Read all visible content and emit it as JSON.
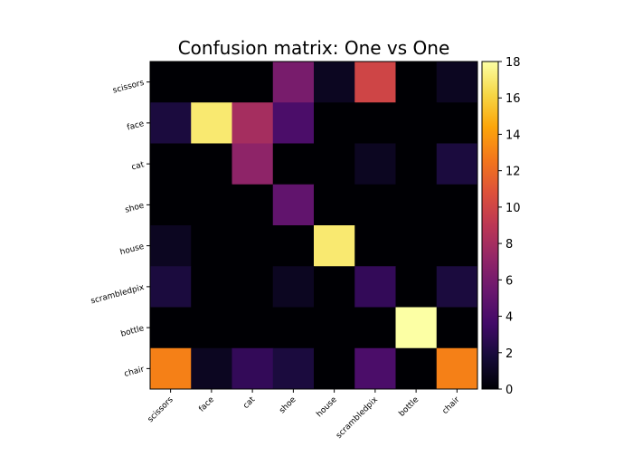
{
  "chart_data": {
    "type": "heatmap",
    "title": "Confusion matrix: One vs One",
    "x_categories": [
      "scissors",
      "face",
      "cat",
      "shoe",
      "house",
      "scrambledpix",
      "bottle",
      "chair"
    ],
    "y_categories": [
      "scissors",
      "face",
      "cat",
      "shoe",
      "house",
      "scrambledpix",
      "bottle",
      "chair"
    ],
    "values": [
      [
        0,
        0,
        0,
        6,
        1,
        10,
        0,
        1
      ],
      [
        2,
        17,
        8,
        4,
        0,
        0,
        0,
        0
      ],
      [
        0,
        0,
        7,
        0,
        0,
        1,
        0,
        2
      ],
      [
        0,
        0,
        0,
        5,
        0,
        0,
        0,
        0
      ],
      [
        1,
        0,
        0,
        0,
        17,
        0,
        0,
        0
      ],
      [
        2,
        0,
        0,
        1,
        0,
        3,
        0,
        2
      ],
      [
        0,
        0,
        0,
        0,
        0,
        0,
        18,
        0
      ],
      [
        13,
        1,
        3,
        2,
        0,
        4,
        0,
        13
      ]
    ],
    "colormap": "inferno",
    "color_range": [
      0,
      18
    ],
    "colorbar_ticks": [
      "0",
      "2",
      "4",
      "6",
      "8",
      "10",
      "12",
      "14",
      "16",
      "18"
    ]
  }
}
